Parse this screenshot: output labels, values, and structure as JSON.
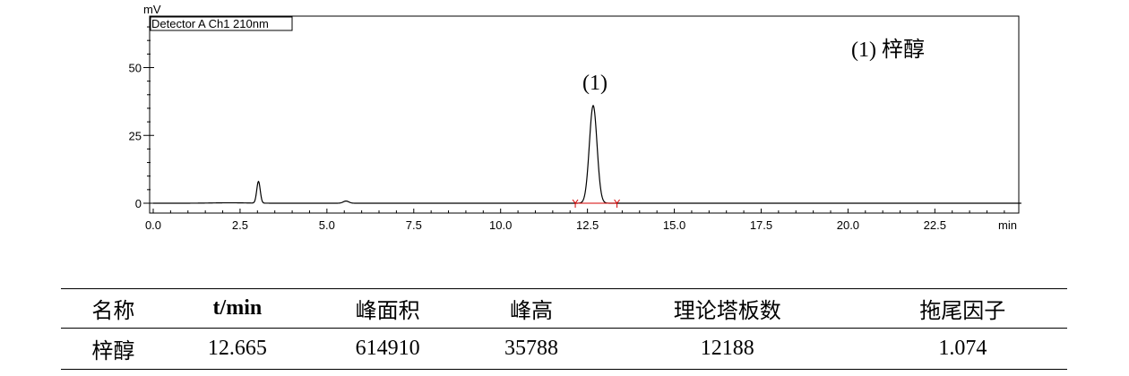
{
  "chart_data": {
    "type": "line",
    "ylabel": "mV",
    "xlabel": "min",
    "legend": "Detector A Ch1 210nm",
    "xlim": [
      0,
      25
    ],
    "ylim": [
      -5,
      70
    ],
    "x_ticks": [
      "0.0",
      "2.5",
      "5.0",
      "7.5",
      "10.0",
      "12.5",
      "15.0",
      "17.5",
      "20.0",
      "22.5"
    ],
    "x_tick_values": [
      0,
      2.5,
      5,
      7.5,
      10,
      12.5,
      15,
      17.5,
      20,
      22.5
    ],
    "y_ticks": [
      "0",
      "25",
      "50"
    ],
    "y_tick_values": [
      0,
      25,
      50
    ],
    "peaks": [
      {
        "time": 3.03,
        "height": 8.0,
        "width": 0.05
      },
      {
        "time": 5.55,
        "height": 0.8,
        "width": 0.08
      },
      {
        "time": 12.665,
        "height": 36.0,
        "width": 0.11,
        "label": "(1)"
      }
    ],
    "integration": {
      "start": 12.15,
      "end": 13.35
    },
    "peak_legend": "(1)  梓醇"
  },
  "table": {
    "headers": [
      "名称",
      "t/min",
      "峰面积",
      "峰高",
      "理论塔板数",
      "拖尾因子"
    ],
    "rows": [
      [
        "梓醇",
        "12.665",
        "614910",
        "35788",
        "12188",
        "1.074"
      ]
    ]
  }
}
